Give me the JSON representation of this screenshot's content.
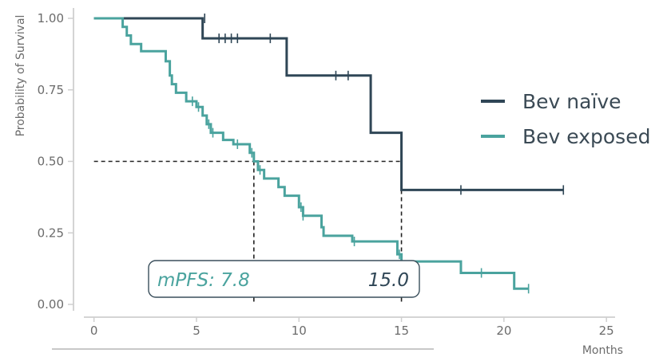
{
  "chart_data": {
    "type": "line",
    "title": "",
    "xlabel": "Months",
    "ylabel": "Probability of Survival",
    "xlim": [
      -1,
      25.5
    ],
    "ylim": [
      0,
      1.0
    ],
    "xticks": [
      0,
      5,
      10,
      15,
      20,
      25
    ],
    "xtick_labels": [
      "0",
      "5",
      "10",
      "15",
      "20",
      "25"
    ],
    "yticks": [
      0,
      0.25,
      0.5,
      0.75,
      1.0
    ],
    "ytick_labels": [
      "0.00",
      "0.25",
      "0.50",
      "0.75",
      "1.00"
    ],
    "grid": false,
    "legend_position": "right",
    "series": [
      {
        "name": "Bev naïve",
        "color": "#2f4656",
        "steps": [
          [
            0,
            1.0
          ],
          [
            5.3,
            0.93
          ],
          [
            9.4,
            0.8
          ],
          [
            13.5,
            0.6
          ],
          [
            15.0,
            0.4
          ],
          [
            22.9,
            0.4
          ]
        ],
        "censors": [
          [
            5.4,
            1.0
          ],
          [
            6.1,
            0.93
          ],
          [
            6.4,
            0.93
          ],
          [
            6.7,
            0.93
          ],
          [
            7.0,
            0.93
          ],
          [
            8.6,
            0.93
          ],
          [
            11.8,
            0.8
          ],
          [
            12.4,
            0.8
          ],
          [
            17.9,
            0.4
          ],
          [
            22.9,
            0.4
          ]
        ]
      },
      {
        "name": "Bev exposed",
        "color": "#4aa39e",
        "steps": [
          [
            0,
            1.0
          ],
          [
            1.4,
            0.97
          ],
          [
            1.6,
            0.94
          ],
          [
            1.8,
            0.91
          ],
          [
            2.3,
            0.885
          ],
          [
            3.5,
            0.85
          ],
          [
            3.7,
            0.8
          ],
          [
            3.8,
            0.77
          ],
          [
            4.0,
            0.74
          ],
          [
            4.5,
            0.71
          ],
          [
            5.0,
            0.69
          ],
          [
            5.3,
            0.66
          ],
          [
            5.5,
            0.63
          ],
          [
            5.7,
            0.6
          ],
          [
            6.3,
            0.575
          ],
          [
            6.8,
            0.56
          ],
          [
            7.6,
            0.53
          ],
          [
            7.8,
            0.5
          ],
          [
            8.0,
            0.47
          ],
          [
            8.3,
            0.44
          ],
          [
            9.0,
            0.41
          ],
          [
            9.3,
            0.38
          ],
          [
            10.0,
            0.34
          ],
          [
            10.2,
            0.31
          ],
          [
            11.1,
            0.27
          ],
          [
            11.2,
            0.24
          ],
          [
            12.6,
            0.22
          ],
          [
            14.8,
            0.175
          ],
          [
            15.0,
            0.15
          ],
          [
            17.9,
            0.11
          ],
          [
            20.5,
            0.055
          ],
          [
            21.2,
            0.055
          ]
        ],
        "censors": [
          [
            4.8,
            0.71
          ],
          [
            5.1,
            0.69
          ],
          [
            5.6,
            0.63
          ],
          [
            5.8,
            0.6
          ],
          [
            7.0,
            0.56
          ],
          [
            7.7,
            0.53
          ],
          [
            8.1,
            0.47
          ],
          [
            10.1,
            0.34
          ],
          [
            10.2,
            0.31
          ],
          [
            12.7,
            0.22
          ],
          [
            14.9,
            0.175
          ],
          [
            18.9,
            0.11
          ],
          [
            21.2,
            0.055
          ]
        ]
      }
    ],
    "reference_lines": {
      "y": 0.5,
      "x_values": [
        7.8,
        15.0
      ]
    },
    "annotation": {
      "left_text": "mPFS: 7.8",
      "right_text": "15.0"
    }
  }
}
